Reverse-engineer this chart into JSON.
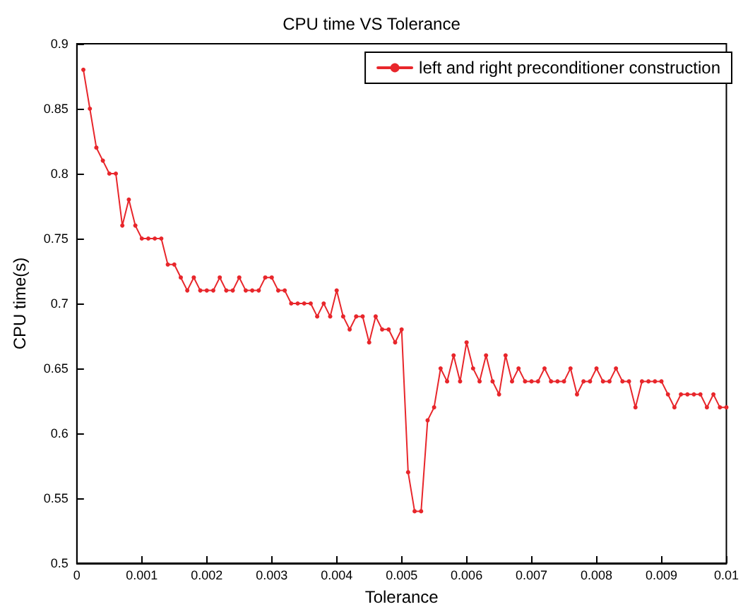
{
  "chart_data": {
    "type": "line",
    "title": "CPU time VS Tolerance",
    "xlabel": "Tolerance",
    "ylabel": "CPU time(s)",
    "x": [
      0.0001,
      0.0002,
      0.0003,
      0.0004,
      0.0005,
      0.0006,
      0.0007,
      0.0008,
      0.0009,
      0.001,
      0.0011,
      0.0012,
      0.0013,
      0.0014,
      0.0015,
      0.0016,
      0.0017,
      0.0018,
      0.0019,
      0.002,
      0.0021,
      0.0022,
      0.0023,
      0.0024,
      0.0025,
      0.0026,
      0.0027,
      0.0028,
      0.0029,
      0.003,
      0.0031,
      0.0032,
      0.0033,
      0.0034,
      0.0035,
      0.0036,
      0.0037,
      0.0038,
      0.0039,
      0.004,
      0.0041,
      0.0042,
      0.0043,
      0.0044,
      0.0045,
      0.0046,
      0.0047,
      0.0048,
      0.0049,
      0.005,
      0.0051,
      0.0052,
      0.0053,
      0.0054,
      0.0055,
      0.0056,
      0.0057,
      0.0058,
      0.0059,
      0.006,
      0.0061,
      0.0062,
      0.0063,
      0.0064,
      0.0065,
      0.0066,
      0.0067,
      0.0068,
      0.0069,
      0.007,
      0.0071,
      0.0072,
      0.0073,
      0.0074,
      0.0075,
      0.0076,
      0.0077,
      0.0078,
      0.0079,
      0.008,
      0.0081,
      0.0082,
      0.0083,
      0.0084,
      0.0085,
      0.0086,
      0.0087,
      0.0088,
      0.0089,
      0.009,
      0.0091,
      0.0092,
      0.0093,
      0.0094,
      0.0095,
      0.0096,
      0.0097,
      0.0098,
      0.0099,
      0.01
    ],
    "series": [
      {
        "name": "left and right preconditioner construction",
        "color": "#e8262b",
        "values": [
          0.88,
          0.85,
          0.82,
          0.81,
          0.8,
          0.8,
          0.76,
          0.78,
          0.76,
          0.75,
          0.75,
          0.75,
          0.75,
          0.73,
          0.73,
          0.72,
          0.71,
          0.72,
          0.71,
          0.71,
          0.71,
          0.72,
          0.71,
          0.71,
          0.72,
          0.71,
          0.71,
          0.71,
          0.72,
          0.72,
          0.71,
          0.71,
          0.7,
          0.7,
          0.7,
          0.7,
          0.69,
          0.7,
          0.69,
          0.71,
          0.69,
          0.68,
          0.69,
          0.69,
          0.67,
          0.69,
          0.68,
          0.68,
          0.67,
          0.68,
          0.57,
          0.54,
          0.54,
          0.61,
          0.62,
          0.65,
          0.64,
          0.66,
          0.64,
          0.67,
          0.65,
          0.64,
          0.66,
          0.64,
          0.63,
          0.66,
          0.64,
          0.65,
          0.64,
          0.64,
          0.64,
          0.65,
          0.64,
          0.64,
          0.64,
          0.65,
          0.63,
          0.64,
          0.64,
          0.65,
          0.64,
          0.64,
          0.65,
          0.64,
          0.64,
          0.62,
          0.64,
          0.64,
          0.64,
          0.64,
          0.63,
          0.62,
          0.63,
          0.63,
          0.63,
          0.63,
          0.62,
          0.63,
          0.62,
          0.62
        ]
      }
    ],
    "xlim": [
      0,
      0.01
    ],
    "xticks": [
      0,
      0.001,
      0.002,
      0.003,
      0.004,
      0.005,
      0.006,
      0.007,
      0.008,
      0.009,
      0.01
    ],
    "ylim": [
      0.5,
      0.9
    ],
    "yticks": [
      0.5,
      0.55,
      0.6,
      0.65,
      0.7,
      0.75,
      0.8,
      0.85,
      0.9
    ],
    "grid": false,
    "legend": "top right",
    "marker": "circle",
    "line_style": "solid"
  }
}
